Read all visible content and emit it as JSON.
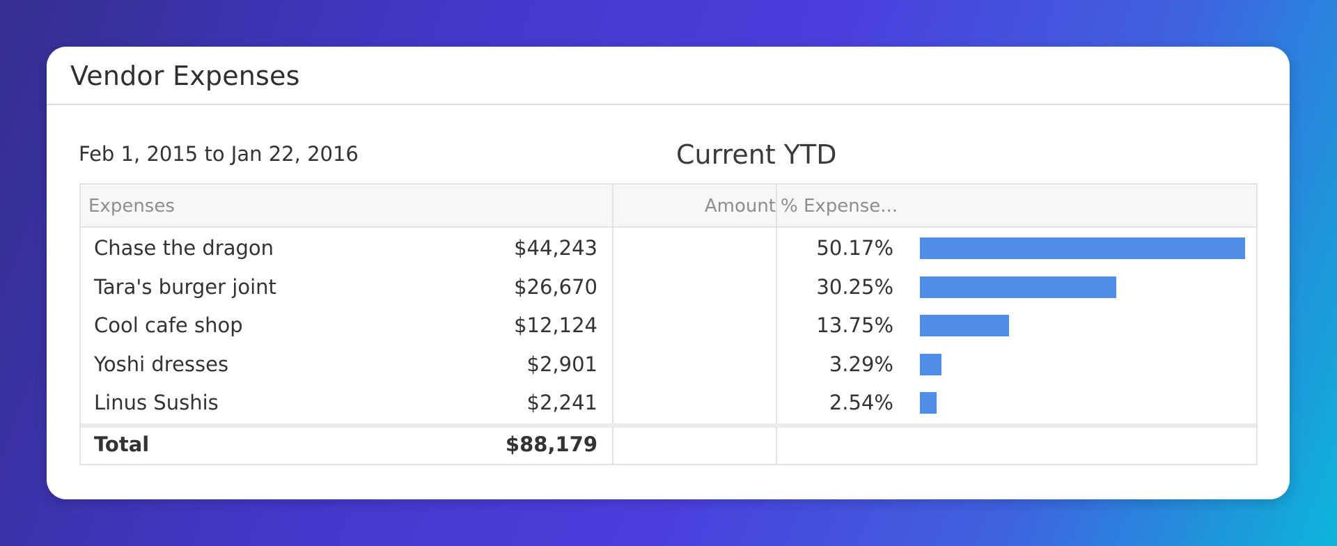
{
  "widget": {
    "title": "Vendor Expenses",
    "date_range": "Feb 1, 2015 to Jan 22, 2016",
    "section_title": "Current YTD"
  },
  "table": {
    "columns": [
      "Expenses",
      "Amount",
      "% Expense..."
    ],
    "rows": [
      {
        "name": "Chase the dragon",
        "amount": "$44,243",
        "pct": "50.17%",
        "pct_value": 50.17
      },
      {
        "name": "Tara's burger joint",
        "amount": "$26,670",
        "pct": "30.25%",
        "pct_value": 30.25
      },
      {
        "name": "Cool cafe shop",
        "amount": "$12,124",
        "pct": "13.75%",
        "pct_value": 13.75
      },
      {
        "name": "Yoshi dresses",
        "amount": "$2,901",
        "pct": "3.29%",
        "pct_value": 3.29
      },
      {
        "name": "Linus Sushis",
        "amount": "$2,241",
        "pct": "2.54%",
        "pct_value": 2.54
      }
    ],
    "total": {
      "label": "Total",
      "amount": "$88,179"
    },
    "bar_color": "#4d8de8"
  }
}
